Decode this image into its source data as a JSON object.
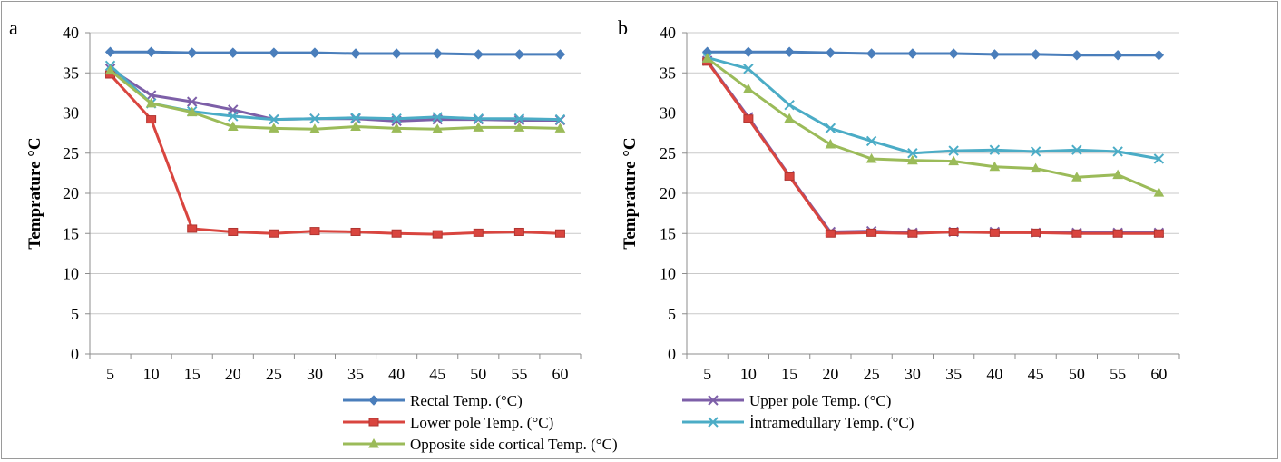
{
  "legend": {
    "rectal": "Rectal Temp. (°C)",
    "upper": "Upper pole Temp. (°C)",
    "lower": "Lower pole Temp. (°C)",
    "intramedullary": "İntramedullary Temp. (°C)",
    "opposite": "Opposite side cortical Temp. (°C)"
  },
  "colors": {
    "rectal": "#4a7ebb",
    "upper": "#7d5fa8",
    "lower": "#d9453f",
    "intramedullary": "#4bacc6",
    "opposite": "#9bbb59"
  },
  "chart_data": [
    {
      "type": "line",
      "panel": "a",
      "ylabel": "Temprature °C",
      "xlabel": "",
      "x": [
        5,
        10,
        15,
        20,
        25,
        30,
        35,
        40,
        45,
        50,
        55,
        60
      ],
      "x_ticks": [
        "5",
        "10",
        "15",
        "20",
        "25",
        "30",
        "35",
        "40",
        "45",
        "50",
        "55",
        "60"
      ],
      "ylim": [
        0,
        40
      ],
      "y_ticks": [
        "0",
        "5",
        "10",
        "15",
        "20",
        "25",
        "30",
        "35",
        "40"
      ],
      "grid": true,
      "legend_position": "bottom",
      "series": [
        {
          "name": "Rectal Temp. (°C)",
          "key": "rectal",
          "marker": "diamond",
          "values": [
            37.6,
            37.6,
            37.5,
            37.5,
            37.5,
            37.5,
            37.4,
            37.4,
            37.4,
            37.3,
            37.3,
            37.3
          ]
        },
        {
          "name": "Upper pole Temp. (°C)",
          "key": "upper",
          "marker": "x",
          "values": [
            35.5,
            32.2,
            31.4,
            30.4,
            29.2,
            29.3,
            29.3,
            29.0,
            29.2,
            29.2,
            29.1,
            29.1
          ]
        },
        {
          "name": "Lower pole Temp. (°C)",
          "key": "lower",
          "marker": "square",
          "values": [
            34.8,
            29.2,
            15.6,
            15.2,
            15.0,
            15.3,
            15.2,
            15.0,
            14.9,
            15.1,
            15.2,
            15.0
          ]
        },
        {
          "name": "İntramedullary Temp. (°C)",
          "key": "intramedullary",
          "marker": "x",
          "values": [
            35.9,
            31.2,
            30.2,
            29.6,
            29.2,
            29.3,
            29.4,
            29.3,
            29.5,
            29.3,
            29.3,
            29.2
          ]
        },
        {
          "name": "Opposite side cortical Temp. (°C)",
          "key": "opposite",
          "marker": "triangle",
          "values": [
            35.3,
            31.2,
            30.1,
            28.3,
            28.1,
            28.0,
            28.3,
            28.1,
            28.0,
            28.2,
            28.2,
            28.1
          ]
        }
      ]
    },
    {
      "type": "line",
      "panel": "b",
      "ylabel": "Temprature °C",
      "xlabel": "",
      "x": [
        5,
        10,
        15,
        20,
        25,
        30,
        35,
        40,
        45,
        50,
        55,
        60
      ],
      "x_ticks": [
        "5",
        "10",
        "15",
        "20",
        "25",
        "30",
        "35",
        "40",
        "45",
        "50",
        "55",
        "60"
      ],
      "ylim": [
        0,
        40
      ],
      "y_ticks": [
        "0",
        "5",
        "10",
        "15",
        "20",
        "25",
        "30",
        "35",
        "40"
      ],
      "grid": true,
      "legend_position": "bottom",
      "series": [
        {
          "name": "Rectal Temp. (°C)",
          "key": "rectal",
          "marker": "diamond",
          "values": [
            37.6,
            37.6,
            37.6,
            37.5,
            37.4,
            37.4,
            37.4,
            37.3,
            37.3,
            37.2,
            37.2,
            37.2
          ]
        },
        {
          "name": "Upper pole Temp. (°C)",
          "key": "upper",
          "marker": "x",
          "values": [
            36.5,
            29.5,
            22.2,
            15.2,
            15.3,
            15.1,
            15.2,
            15.2,
            15.1,
            15.1,
            15.1,
            15.1
          ]
        },
        {
          "name": "Lower pole Temp. (°C)",
          "key": "lower",
          "marker": "square",
          "values": [
            36.4,
            29.3,
            22.1,
            15.0,
            15.1,
            15.0,
            15.2,
            15.1,
            15.1,
            15.0,
            15.0,
            15.0
          ]
        },
        {
          "name": "İntramedullary Temp. (°C)",
          "key": "intramedullary",
          "marker": "x",
          "values": [
            36.9,
            35.5,
            31.0,
            28.1,
            26.5,
            25.0,
            25.3,
            25.4,
            25.2,
            25.4,
            25.2,
            24.3
          ]
        },
        {
          "name": "Opposite side cortical Temp. (°C)",
          "key": "opposite",
          "marker": "triangle",
          "values": [
            36.8,
            33.0,
            29.3,
            26.1,
            24.3,
            24.1,
            24.0,
            23.3,
            23.1,
            22.0,
            22.3,
            20.1
          ]
        }
      ]
    }
  ]
}
